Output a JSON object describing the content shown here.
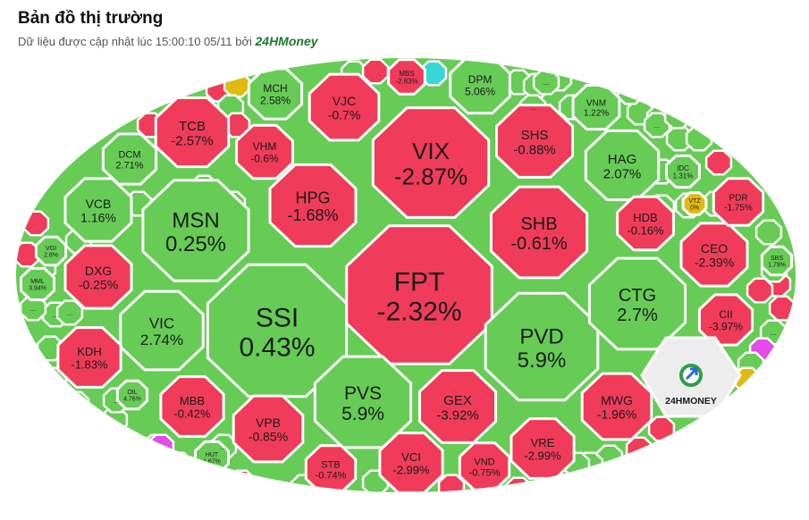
{
  "header": {
    "title": "Bản đồ thị trường",
    "subtitle": "Dữ liệu được cập nhật lúc 15:00:10 05/11 bởi",
    "brand": "24HMoney"
  },
  "colors": {
    "up": "#66cc55",
    "down": "#f03c5a",
    "flat": "#e2b90e",
    "ceiling": "#e54be8",
    "floor": "#36d6d6",
    "border": "#ffffff"
  },
  "logo": {
    "text": "24HMONEY",
    "icon": "24hmoney-logo-icon"
  },
  "chart_data": {
    "type": "treemap",
    "cells": [
      {
        "symbol": "FPT",
        "change": "-2.32%",
        "value": -2.32
      },
      {
        "symbol": "SSI",
        "change": "0.43%",
        "value": 0.43
      },
      {
        "symbol": "VIX",
        "change": "-2.87%",
        "value": -2.87
      },
      {
        "symbol": "PVD",
        "change": "5.9%",
        "value": 5.9
      },
      {
        "symbol": "MSN",
        "change": "0.25%",
        "value": 0.25
      },
      {
        "symbol": "SHB",
        "change": "-0.61%",
        "value": -0.61
      },
      {
        "symbol": "PVS",
        "change": "5.9%",
        "value": 5.9
      },
      {
        "symbol": "CTG",
        "change": "2.7%",
        "value": 2.7
      },
      {
        "symbol": "HPG",
        "change": "-1.68%",
        "value": -1.68
      },
      {
        "symbol": "VIC",
        "change": "2.74%",
        "value": 2.74
      },
      {
        "symbol": "GEX",
        "change": "-3.92%",
        "value": -3.92
      },
      {
        "symbol": "SHS",
        "change": "-0.88%",
        "value": -0.88
      },
      {
        "symbol": "HAG",
        "change": "2.07%",
        "value": 2.07
      },
      {
        "symbol": "MWG",
        "change": "-1.96%",
        "value": -1.96
      },
      {
        "symbol": "CEO",
        "change": "-2.39%",
        "value": -2.39
      },
      {
        "symbol": "TCB",
        "change": "-2.57%",
        "value": -2.57
      },
      {
        "symbol": "VJC",
        "change": "-0.7%",
        "value": -0.7
      },
      {
        "symbol": "DXG",
        "change": "-0.25%",
        "value": -0.25
      },
      {
        "symbol": "VCB",
        "change": "1.16%",
        "value": 1.16
      },
      {
        "symbol": "KDH",
        "change": "-1.83%",
        "value": -1.83
      },
      {
        "symbol": "VPB",
        "change": "-0.85%",
        "value": -0.85
      },
      {
        "symbol": "MBB",
        "change": "-0.42%",
        "value": -0.42
      },
      {
        "symbol": "VCI",
        "change": "-2.99%",
        "value": -2.99
      },
      {
        "symbol": "VRE",
        "change": "-2.99%",
        "value": -2.99
      },
      {
        "symbol": "HDB",
        "change": "-0.16%",
        "value": -0.16
      },
      {
        "symbol": "VHM",
        "change": "-0.6%",
        "value": -0.6
      },
      {
        "symbol": "DPM",
        "change": "5.06%",
        "value": 5.06
      },
      {
        "symbol": "MCH",
        "change": "2.58%",
        "value": 2.58
      },
      {
        "symbol": "DCM",
        "change": "2.71%",
        "value": 2.71
      },
      {
        "symbol": "CII",
        "change": "-3.97%",
        "value": -3.97
      },
      {
        "symbol": "STB",
        "change": "-0.74%",
        "value": -0.74
      },
      {
        "symbol": "VND",
        "change": "-0.75%",
        "value": -0.75
      },
      {
        "symbol": "PDR",
        "change": "-1.75%",
        "value": -1.75
      },
      {
        "symbol": "VNM",
        "change": "1.22%",
        "value": 1.22
      },
      {
        "symbol": "IDC",
        "change": "1.31%",
        "value": 1.31
      },
      {
        "symbol": "VTZ",
        "change": "0%",
        "value": 0
      },
      {
        "symbol": "SBS",
        "change": "1.79%",
        "value": 1.79
      },
      {
        "symbol": "MBS",
        "change": "-2.83%",
        "value": -2.83
      },
      {
        "symbol": "VGI",
        "change": "2.8%",
        "value": 2.8
      },
      {
        "symbol": "MML",
        "change": "3.94%",
        "value": 3.94
      },
      {
        "symbol": "OIL",
        "change": "4.76%",
        "value": 4.76
      },
      {
        "symbol": "HUT",
        "change": "1.67%",
        "value": 1.67
      }
    ],
    "small_cells_label": "..."
  }
}
